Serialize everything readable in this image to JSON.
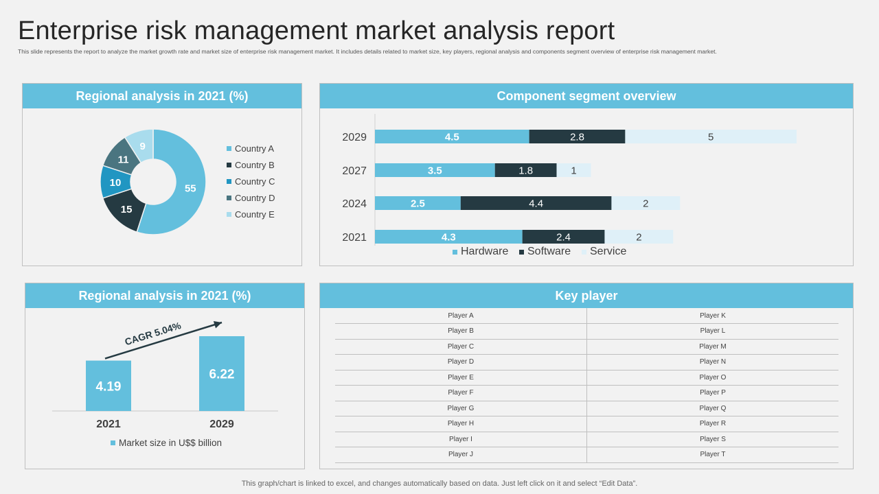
{
  "page": {
    "title": "Enterprise risk management market analysis report",
    "subtitle": "This slide represents the report to analyze the market growth rate and market size of enterprise risk management market. It includes details related to market size, key players, regional analysis and components segment overview of enterprise risk management market.",
    "footer": "This graph/chart is linked to excel, and changes automatically based on data. Just left click on it and select “Edit Data”."
  },
  "panels": {
    "donut_title": "Regional analysis in 2021 (%)",
    "segment_title": "Component segment overview",
    "cagr_title": "Regional analysis in 2021 (%)",
    "key_title": "Key player"
  },
  "colors": {
    "hardware": "#63bfdd",
    "software": "#253a42",
    "service": "#dff0f8",
    "country_a": "#63bfdd",
    "country_b": "#253a42",
    "country_c": "#2196c2",
    "country_d": "#4a7580",
    "country_e": "#a9dced",
    "bar": "#63bfdd"
  },
  "chart_data": [
    {
      "type": "pie",
      "title": "Regional analysis in 2021 (%)",
      "donut": true,
      "categories": [
        "Country A",
        "Country B",
        "Country C",
        "Country D",
        "Country E"
      ],
      "values": [
        55,
        15,
        10,
        11,
        9
      ],
      "legend": "right"
    },
    {
      "type": "bar",
      "orientation": "horizontal",
      "stacked": true,
      "title": "Component segment overview",
      "categories": [
        "2029",
        "2027",
        "2024",
        "2021"
      ],
      "series": [
        {
          "name": "Hardware",
          "values": [
            4.5,
            3.5,
            2.5,
            4.3
          ]
        },
        {
          "name": "Software",
          "values": [
            2.8,
            1.8,
            4.4,
            2.4
          ]
        },
        {
          "name": "Service",
          "values": [
            5,
            1,
            2,
            2
          ]
        }
      ],
      "legend": "bottom"
    },
    {
      "type": "bar",
      "title": "Regional analysis in 2021 (%)",
      "categories": [
        "2021",
        "2029"
      ],
      "series": [
        {
          "name": "Market size in U$$ billion",
          "values": [
            4.19,
            6.22
          ]
        }
      ],
      "annotation": "CAGR 5.04%",
      "legend": "bottom"
    }
  ],
  "key_players": {
    "rows": [
      [
        "Player A",
        "Player K"
      ],
      [
        "Player B",
        "Player L"
      ],
      [
        "Player C",
        "Player M"
      ],
      [
        "Player D",
        "Player N"
      ],
      [
        "Player E",
        "Player O"
      ],
      [
        "Player F",
        "Player P"
      ],
      [
        "Player G",
        "Player Q"
      ],
      [
        "Player H",
        "Player R"
      ],
      [
        "Player I",
        "Player S"
      ],
      [
        "Player J",
        "Player T"
      ]
    ]
  }
}
